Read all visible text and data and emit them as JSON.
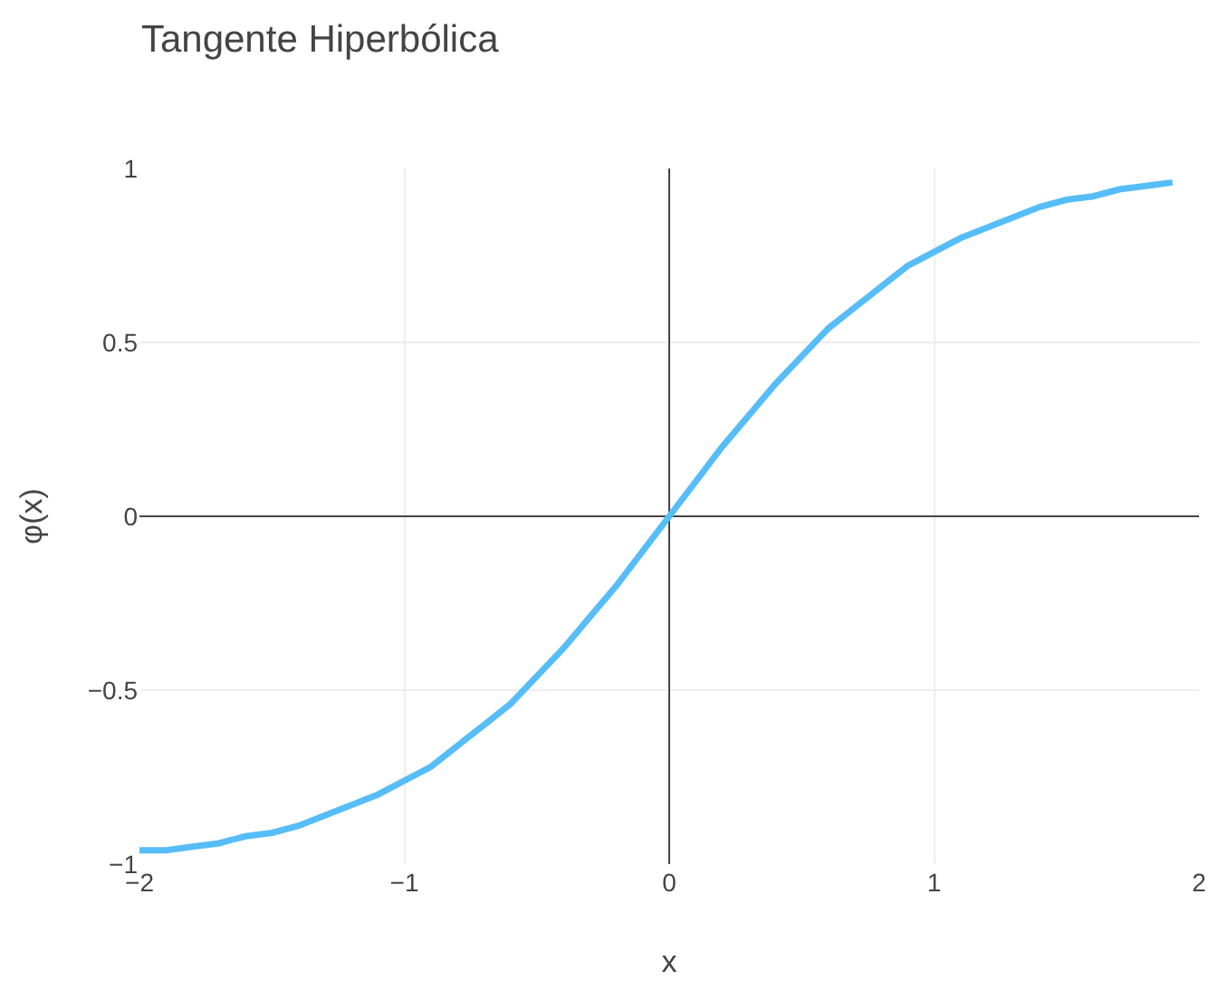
{
  "chart_data": {
    "type": "line",
    "title": "Tangente Hiperbólica",
    "xlabel": "x",
    "ylabel": "φ(x)",
    "x": [
      -2,
      -1.9,
      -1.8,
      -1.7,
      -1.6,
      -1.5,
      -1.4,
      -1.3,
      -1.2,
      -1.1,
      -1,
      -0.9,
      -0.8,
      -0.7,
      -0.6,
      -0.5,
      -0.4,
      -0.3,
      -0.2,
      -0.1,
      0,
      0.1,
      0.2,
      0.3,
      0.4,
      0.5,
      0.6,
      0.7,
      0.8,
      0.9,
      1,
      1.1,
      1.2,
      1.3,
      1.4,
      1.5,
      1.6,
      1.7,
      1.8,
      1.9
    ],
    "series": [
      {
        "color": "#56bdf8",
        "values": [
          -0.96,
          -0.96,
          -0.95,
          -0.94,
          -0.92,
          -0.91,
          -0.89,
          -0.86,
          -0.83,
          -0.8,
          -0.76,
          -0.72,
          -0.66,
          -0.6,
          -0.54,
          -0.46,
          -0.38,
          -0.29,
          -0.2,
          -0.1,
          0,
          0.1,
          0.2,
          0.29,
          0.38,
          0.46,
          0.54,
          0.6,
          0.66,
          0.72,
          0.76,
          0.8,
          0.83,
          0.86,
          0.89,
          0.91,
          0.92,
          0.94,
          0.95,
          0.96
        ]
      }
    ],
    "xlim": [
      -2,
      2
    ],
    "xticks": [
      -2,
      -1,
      0,
      1,
      2
    ],
    "ylim": [
      -1,
      1
    ],
    "yticks": [
      -1,
      -0.5,
      0,
      0.5,
      1
    ],
    "grid": true,
    "marker": "none",
    "line_style": "solid"
  }
}
